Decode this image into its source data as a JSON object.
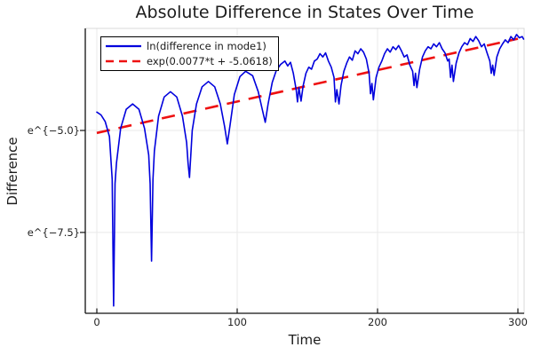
{
  "title": "Absolute Difference in States Over Time",
  "colors": {
    "blue": "#0000dd",
    "red": "#ee1111",
    "grid": "#e9e9e9",
    "border": "#d8d8d8",
    "axis": "#111111",
    "text": "#1c1c1c"
  },
  "chart_data": {
    "type": "line",
    "title": "Absolute Difference in States Over Time",
    "xlabel": "Time",
    "ylabel": "Difference",
    "grid": true,
    "legend_position": "top-left",
    "xlim": [
      -8.2,
      304.4
    ],
    "ylim_ln": [
      -9.48,
      -2.5
    ],
    "xticks": {
      "values": [
        0,
        100,
        200,
        300
      ],
      "labels": [
        "0",
        "100",
        "200",
        "300"
      ]
    },
    "yticks": {
      "values": [
        -5.0,
        -7.5
      ],
      "labels": [
        "e^{−5.0}",
        "e^{−7.5}"
      ]
    },
    "series": [
      {
        "name": "ln(difference in mode1)",
        "color": "#0000dd",
        "style": "solid",
        "points": [
          [
            0,
            -4.55
          ],
          [
            3,
            -4.62
          ],
          [
            6,
            -4.78
          ],
          [
            9,
            -5.15
          ],
          [
            11,
            -6.2
          ],
          [
            12,
            -9.3
          ],
          [
            13,
            -6.3
          ],
          [
            14,
            -5.8
          ],
          [
            17,
            -4.95
          ],
          [
            21,
            -4.48
          ],
          [
            25.5,
            -4.35
          ],
          [
            30,
            -4.48
          ],
          [
            34,
            -4.95
          ],
          [
            37,
            -5.6
          ],
          [
            38,
            -6.3
          ],
          [
            39,
            -8.2
          ],
          [
            40,
            -6.2
          ],
          [
            41,
            -5.5
          ],
          [
            44,
            -4.65
          ],
          [
            48,
            -4.18
          ],
          [
            52.5,
            -4.05
          ],
          [
            57,
            -4.18
          ],
          [
            61,
            -4.65
          ],
          [
            64,
            -5.3
          ],
          [
            65,
            -5.8
          ],
          [
            66,
            -6.15
          ],
          [
            67,
            -5.6
          ],
          [
            68,
            -5.0
          ],
          [
            71,
            -4.35
          ],
          [
            75,
            -3.93
          ],
          [
            79.5,
            -3.8
          ],
          [
            84,
            -3.93
          ],
          [
            88,
            -4.35
          ],
          [
            91,
            -4.9
          ],
          [
            93,
            -5.33
          ],
          [
            95,
            -4.85
          ],
          [
            98,
            -4.12
          ],
          [
            102,
            -3.68
          ],
          [
            106,
            -3.55
          ],
          [
            111,
            -3.66
          ],
          [
            115,
            -4.05
          ],
          [
            118,
            -4.5
          ],
          [
            120,
            -4.8
          ],
          [
            122,
            -4.35
          ],
          [
            125,
            -3.82
          ],
          [
            128,
            -3.52
          ],
          [
            131,
            -3.38
          ],
          [
            134,
            -3.3
          ],
          [
            136,
            -3.42
          ],
          [
            138,
            -3.33
          ],
          [
            140,
            -3.6
          ],
          [
            142,
            -4.0
          ],
          [
            143,
            -4.3
          ],
          [
            144,
            -3.95
          ],
          [
            145.5,
            -4.28
          ],
          [
            147,
            -3.9
          ],
          [
            149,
            -3.6
          ],
          [
            151,
            -3.45
          ],
          [
            153,
            -3.5
          ],
          [
            155,
            -3.3
          ],
          [
            157,
            -3.25
          ],
          [
            159,
            -3.12
          ],
          [
            161,
            -3.2
          ],
          [
            163,
            -3.1
          ],
          [
            165,
            -3.3
          ],
          [
            167,
            -3.45
          ],
          [
            169,
            -3.7
          ],
          [
            170,
            -4.3
          ],
          [
            171,
            -4.0
          ],
          [
            172.5,
            -4.35
          ],
          [
            174,
            -3.9
          ],
          [
            176,
            -3.55
          ],
          [
            178,
            -3.35
          ],
          [
            180,
            -3.2
          ],
          [
            182,
            -3.28
          ],
          [
            184,
            -3.05
          ],
          [
            186,
            -3.12
          ],
          [
            188,
            -3.0
          ],
          [
            190,
            -3.08
          ],
          [
            192,
            -3.25
          ],
          [
            194,
            -3.6
          ],
          [
            195,
            -4.1
          ],
          [
            196,
            -3.85
          ],
          [
            197,
            -4.25
          ],
          [
            199,
            -3.7
          ],
          [
            201,
            -3.45
          ],
          [
            203,
            -3.3
          ],
          [
            205,
            -3.12
          ],
          [
            207,
            -3.0
          ],
          [
            209,
            -3.08
          ],
          [
            211,
            -2.95
          ],
          [
            213,
            -3.02
          ],
          [
            215,
            -2.92
          ],
          [
            217,
            -3.05
          ],
          [
            219,
            -3.2
          ],
          [
            221,
            -3.15
          ],
          [
            223,
            -3.4
          ],
          [
            225,
            -3.55
          ],
          [
            226,
            -3.9
          ],
          [
            227,
            -3.6
          ],
          [
            228,
            -3.95
          ],
          [
            230,
            -3.5
          ],
          [
            232,
            -3.2
          ],
          [
            234,
            -3.05
          ],
          [
            236,
            -2.95
          ],
          [
            238,
            -3.0
          ],
          [
            240,
            -2.88
          ],
          [
            242,
            -2.95
          ],
          [
            244,
            -2.85
          ],
          [
            246,
            -3.0
          ],
          [
            248,
            -3.1
          ],
          [
            250,
            -3.3
          ],
          [
            251,
            -3.25
          ],
          [
            252,
            -3.7
          ],
          [
            253,
            -3.4
          ],
          [
            254,
            -3.8
          ],
          [
            256,
            -3.35
          ],
          [
            258,
            -3.1
          ],
          [
            260,
            -2.95
          ],
          [
            262,
            -2.85
          ],
          [
            264,
            -2.9
          ],
          [
            266,
            -2.75
          ],
          [
            268,
            -2.82
          ],
          [
            270,
            -2.7
          ],
          [
            272,
            -2.8
          ],
          [
            274,
            -2.95
          ],
          [
            276,
            -2.88
          ],
          [
            278,
            -3.1
          ],
          [
            280,
            -3.3
          ],
          [
            281,
            -3.6
          ],
          [
            282,
            -3.4
          ],
          [
            283,
            -3.65
          ],
          [
            285,
            -3.2
          ],
          [
            287,
            -3.0
          ],
          [
            289,
            -2.88
          ],
          [
            291,
            -2.78
          ],
          [
            293,
            -2.85
          ],
          [
            295,
            -2.7
          ],
          [
            297,
            -2.78
          ],
          [
            299,
            -2.65
          ],
          [
            301,
            -2.73
          ],
          [
            303,
            -2.7
          ],
          [
            304,
            -2.76
          ]
        ]
      },
      {
        "name": "exp(0.0077*t + -5.0618)",
        "color": "#ee1111",
        "style": "dashed",
        "slope": 0.0077,
        "intercept": -5.0618,
        "t_range": [
          0,
          300
        ]
      }
    ]
  }
}
